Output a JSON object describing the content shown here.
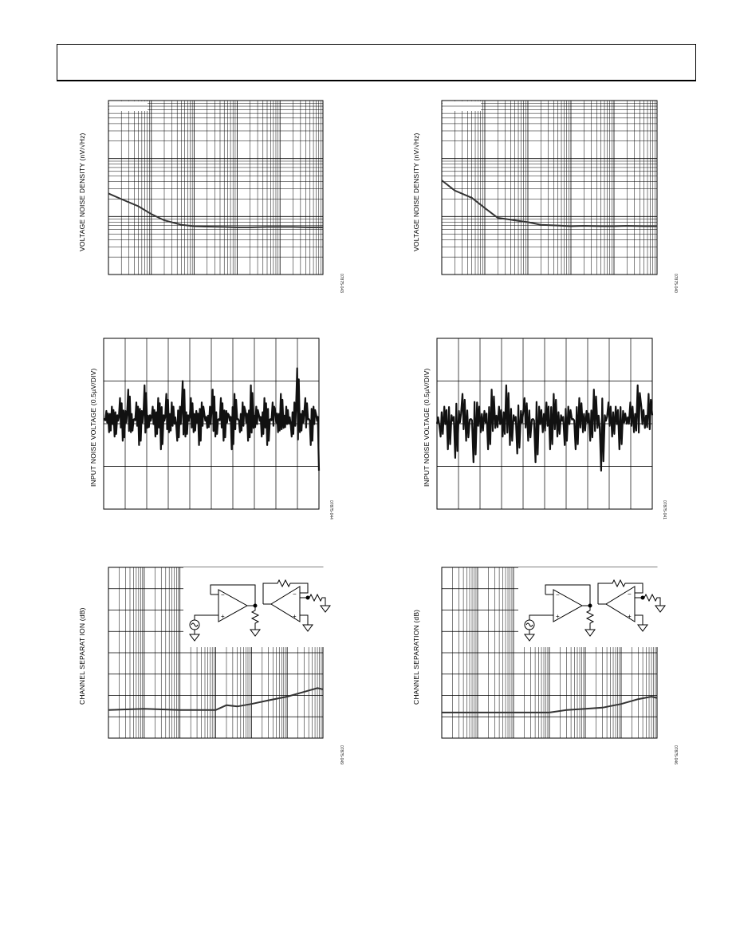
{
  "chart_data": [
    {
      "id": "noise_density_left",
      "type": "line",
      "ylabel": "VOLTAGE NOISE DENSITY (nV/√Hz)",
      "figure_id": "07875-043",
      "x_scale": "log",
      "y_scale": "log",
      "grid": true,
      "xlim": [
        1,
        100000
      ],
      "ylim": [
        1,
        1000
      ],
      "series": [
        {
          "x": [
            1,
            2,
            5,
            10,
            20,
            50,
            100,
            200,
            500,
            1000,
            2000,
            5000,
            10000,
            20000,
            50000,
            100000
          ],
          "y": [
            25,
            20,
            15,
            11,
            8.6,
            7.2,
            6.8,
            6.7,
            6.6,
            6.5,
            6.5,
            6.6,
            6.6,
            6.6,
            6.5,
            6.5
          ]
        }
      ]
    },
    {
      "id": "noise_density_right",
      "type": "line",
      "ylabel": "VOLTAGE NOISE DENSITY (nV/√Hz)",
      "figure_id": "07875-040",
      "x_scale": "log",
      "y_scale": "log",
      "grid": true,
      "xlim": [
        1,
        100000
      ],
      "ylim": [
        1,
        1000
      ],
      "series": [
        {
          "x": [
            1,
            2,
            5,
            10,
            20,
            50,
            100,
            200,
            500,
            1000,
            2000,
            5000,
            10000,
            20000,
            50000,
            100000
          ],
          "y": [
            42,
            28,
            21,
            14,
            9.5,
            8.6,
            8.0,
            7.2,
            7.0,
            6.8,
            6.9,
            6.8,
            6.8,
            6.9,
            6.8,
            6.8
          ]
        }
      ]
    },
    {
      "id": "input_noise_left",
      "type": "line",
      "ylabel": "INPUT NOISE VOLTAGE (0.5µV/DIV)",
      "figure_id": "07875-044",
      "grid": true,
      "xlim": [
        0,
        10
      ],
      "ylim": [
        -2,
        2
      ],
      "series": [
        {
          "y": [
            0.1,
            0.3,
            -0.2,
            0.4,
            -0.3,
            0.2,
            0.6,
            -0.4,
            0.3,
            0.8,
            -0.2,
            0.1,
            0.5,
            -0.5,
            0.3,
            0.9,
            -0.1,
            0.2,
            0.4,
            -0.3,
            0.6,
            -0.6,
            0.2,
            0.7,
            -0.2,
            0.5,
            0.0,
            -0.4,
            0.4,
            1.0,
            -0.3,
            0.2,
            0.6,
            -0.2,
            0.3,
            -0.5,
            0.5,
            0.2,
            -0.1,
            0.4,
            0.8,
            -0.3,
            0.1,
            0.6,
            -0.4,
            0.3,
            0.2,
            -0.6,
            0.7,
            0.1,
            -0.2,
            0.5,
            0.3,
            -0.4,
            0.9,
            -0.1,
            0.4,
            0.2,
            -0.3,
            0.6,
            -0.5,
            0.1,
            0.5,
            0.3,
            -0.2,
            0.7,
            -0.1,
            0.4,
            0.0,
            -0.3,
            0.5,
            1.3,
            -0.2,
            0.3,
            0.6,
            0.1,
            -0.5,
            0.4,
            0.2,
            -1.1
          ]
        }
      ]
    },
    {
      "id": "input_noise_right",
      "type": "line",
      "ylabel": "INPUT NOISE VOLTAGE (0.5µV/DIV)",
      "figure_id": "07875-041",
      "grid": true,
      "xlim": [
        0,
        10
      ],
      "ylim": [
        -2,
        2
      ],
      "series": [
        {
          "y": [
            0.0,
            -0.3,
            0.4,
            -0.6,
            0.2,
            -0.8,
            0.3,
            0.7,
            -0.4,
            0.1,
            -0.9,
            0.5,
            -0.2,
            0.3,
            -0.6,
            0.8,
            -0.1,
            0.4,
            -0.3,
            0.9,
            -0.5,
            0.2,
            -0.7,
            0.3,
            0.6,
            -0.4,
            0.1,
            -0.9,
            0.4,
            -0.2,
            0.5,
            -0.6,
            0.7,
            -0.3,
            0.2,
            -0.5,
            0.4,
            0.1,
            -0.6,
            0.6,
            -0.2,
            0.3,
            -0.4,
            0.8,
            -0.1,
            -1.1,
            0.2,
            0.5,
            -0.3,
            0.4,
            -0.6,
            0.3,
            0.0,
            0.5,
            -0.2,
            0.9,
            0.4,
            -0.1,
            0.7,
            0.2
          ]
        }
      ]
    },
    {
      "id": "channel_sep_left",
      "type": "line",
      "ylabel": "CHANNEL SEPARAT ION (dB)",
      "figure_id": "07875-049",
      "x_scale": "log",
      "grid": true,
      "xlim": [
        10,
        10000000
      ],
      "ylim": [
        -160,
        -20
      ],
      "series": [
        {
          "x": [
            10,
            100,
            1000,
            10000,
            20000,
            40000,
            100000,
            300000,
            1000000,
            3000000,
            7000000,
            10000000
          ],
          "y": [
            -137,
            -136,
            -137,
            -137,
            -133,
            -134,
            -132,
            -129,
            -126,
            -122,
            -119,
            -120
          ]
        }
      ],
      "inset": "test-circuit-schematic"
    },
    {
      "id": "channel_sep_right",
      "type": "line",
      "ylabel": "CHANNEL SEPARATION (dB)",
      "figure_id": "07875-046",
      "x_scale": "log",
      "grid": true,
      "xlim": [
        10,
        10000000
      ],
      "ylim": [
        -160,
        -20
      ],
      "series": [
        {
          "x": [
            10,
            100,
            1000,
            10000,
            30000,
            100000,
            300000,
            1000000,
            3000000,
            7000000,
            10000000
          ],
          "y": [
            -139,
            -139,
            -139,
            -139,
            -137,
            -136,
            -135,
            -132,
            -128,
            -126,
            -127
          ]
        }
      ],
      "inset": "test-circuit-schematic"
    }
  ]
}
